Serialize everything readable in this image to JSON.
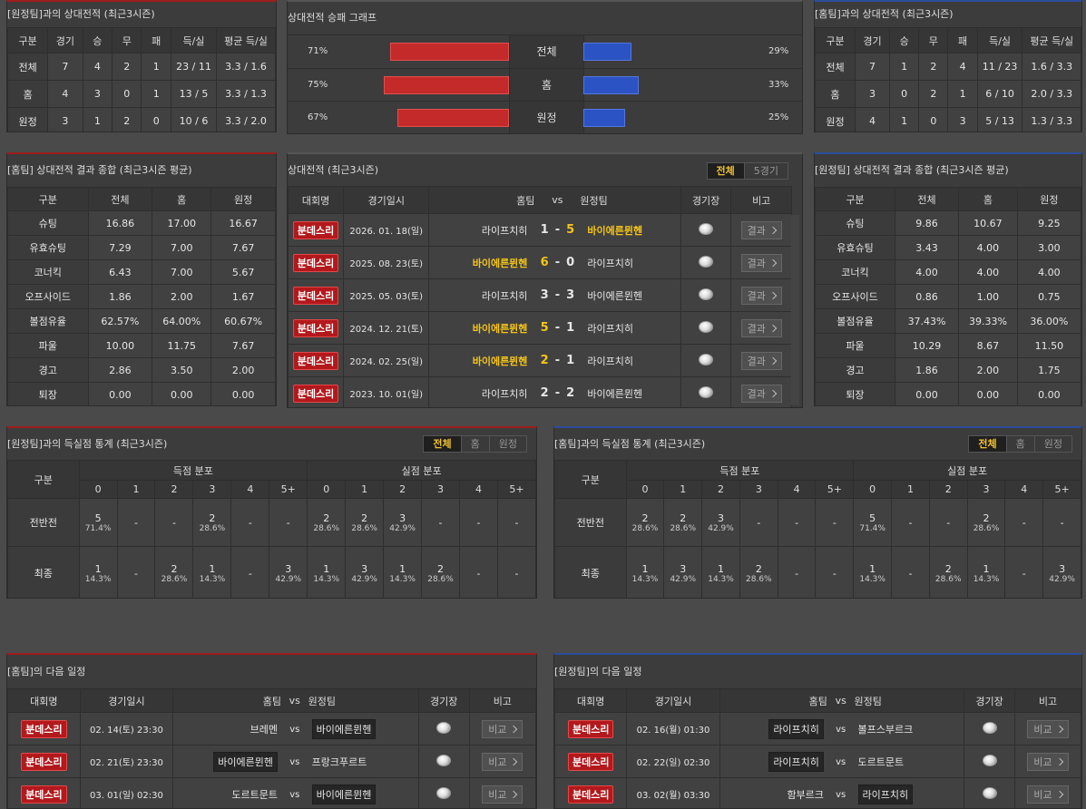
{
  "h2h_away": {
    "title": "[원정팀]과의 상대전적 (최근3시즌)",
    "header": [
      "구분",
      "경기",
      "승",
      "무",
      "패",
      "득/실",
      "평균 득/실"
    ],
    "rows": [
      [
        "전체",
        7,
        4,
        2,
        1,
        "23 / 11",
        "3.3 / 1.6"
      ],
      [
        "홈",
        4,
        3,
        0,
        1,
        "13 / 5",
        "3.3 / 1.3"
      ],
      [
        "원정",
        3,
        1,
        2,
        0,
        "10 / 6",
        "3.3 / 2.0"
      ]
    ]
  },
  "win_graph": {
    "title": "상대전적 승패 그래프",
    "rows": [
      {
        "home_pct": "71%",
        "label": "전체",
        "away_pct": "29%"
      },
      {
        "home_pct": "75%",
        "label": "홈",
        "away_pct": "33%"
      },
      {
        "home_pct": "67%",
        "label": "원정",
        "away_pct": "25%"
      }
    ]
  },
  "h2h_home": {
    "title": "[홈팀]과의 상대전적 (최근3시즌)",
    "header": [
      "구분",
      "경기",
      "승",
      "무",
      "패",
      "득/실",
      "평균 득/실"
    ],
    "rows": [
      [
        "전체",
        7,
        1,
        2,
        4,
        "11 / 23",
        "1.6 / 3.3"
      ],
      [
        "홈",
        3,
        0,
        2,
        1,
        "6 / 10",
        "2.0 / 3.3"
      ],
      [
        "원정",
        4,
        1,
        0,
        3,
        "5 / 13",
        "1.3 / 3.3"
      ]
    ]
  },
  "summary_home": {
    "title": "[홈팀] 상대전적 결과 종합 (최근3시즌 평균)",
    "header": [
      "구분",
      "전체",
      "홈",
      "원정"
    ],
    "rows": [
      [
        "슈팅",
        "16.86",
        "17.00",
        "16.67"
      ],
      [
        "유효슈팅",
        "7.29",
        "7.00",
        "7.67"
      ],
      [
        "코너킥",
        "6.43",
        "7.00",
        "5.67"
      ],
      [
        "오프사이드",
        "1.86",
        "2.00",
        "1.67"
      ],
      [
        "볼점유율",
        "62.57%",
        "64.00%",
        "60.67%"
      ],
      [
        "파울",
        "10.00",
        "11.75",
        "7.67"
      ],
      [
        "경고",
        "2.86",
        "3.50",
        "2.00"
      ],
      [
        "퇴장",
        "0.00",
        "0.00",
        "0.00"
      ]
    ]
  },
  "matches": {
    "title": "상대전적 (최근3시즌)",
    "tabs": [
      "전체",
      "5경기"
    ],
    "header": [
      "대회명",
      "경기일시",
      "홈팀",
      "vs",
      "원정팀",
      "경기장",
      "비고"
    ],
    "rows": [
      {
        "cells": [
          "분데스리",
          "2026. 01. 18(일)",
          "라이프치히",
          "1",
          "-",
          "5",
          "바이에른뮌헨",
          "결과"
        ],
        "winner": "away"
      },
      {
        "cells": [
          "분데스리",
          "2025. 08. 23(토)",
          "바이에른뮌헨",
          "6",
          "-",
          "0",
          "라이프치히",
          "결과"
        ],
        "winner": "home"
      },
      {
        "cells": [
          "분데스리",
          "2025. 05. 03(토)",
          "라이프치히",
          "3",
          "-",
          "3",
          "바이에른뮌헨",
          "결과"
        ],
        "winner": null
      },
      {
        "cells": [
          "분데스리",
          "2024. 12. 21(토)",
          "바이에른뮌헨",
          "5",
          "-",
          "1",
          "라이프치히",
          "결과"
        ],
        "winner": "home"
      },
      {
        "cells": [
          "분데스리",
          "2024. 02. 25(일)",
          "바이에른뮌헨",
          "2",
          "-",
          "1",
          "라이프치히",
          "결과"
        ],
        "winner": "home"
      },
      {
        "cells": [
          "분데스리",
          "2023. 10. 01(일)",
          "라이프치히",
          "2",
          "-",
          "2",
          "바이에른뮌헨",
          "결과"
        ],
        "winner": null
      }
    ]
  },
  "summary_away": {
    "title": "[원정팀] 상대전적 결과 종합 (최근3시즌 평균)",
    "header": [
      "구분",
      "전체",
      "홈",
      "원정"
    ],
    "rows": [
      [
        "슈팅",
        "9.86",
        "10.67",
        "9.25"
      ],
      [
        "유효슈팅",
        "3.43",
        "4.00",
        "3.00"
      ],
      [
        "코너킥",
        "4.00",
        "4.00",
        "4.00"
      ],
      [
        "오프사이드",
        "0.86",
        "1.00",
        "0.75"
      ],
      [
        "볼점유율",
        "37.43%",
        "39.33%",
        "36.00%"
      ],
      [
        "파울",
        "10.29",
        "8.67",
        "11.50"
      ],
      [
        "경고",
        "1.86",
        "2.00",
        "1.75"
      ],
      [
        "퇴장",
        "0.00",
        "0.00",
        "0.00"
      ]
    ]
  },
  "goals_away": {
    "title": "[원정팀]과의 득실점 통계 (최근3시즌)",
    "tabs": [
      "전체",
      "홈",
      "원정"
    ],
    "label": "구분",
    "groups": [
      "득점 분포",
      "실점 분포"
    ],
    "bins": [
      "0",
      "1",
      "2",
      "3",
      "4",
      "5+"
    ],
    "rows": [
      {
        "label": "전반전",
        "cells": [
          [
            "5",
            "71.4%"
          ],
          [
            "-"
          ],
          [
            "-"
          ],
          [
            "2",
            "28.6%"
          ],
          [
            "-"
          ],
          [
            "-"
          ],
          [
            "2",
            "28.6%"
          ],
          [
            "2",
            "28.6%"
          ],
          [
            "3",
            "42.9%"
          ],
          [
            "-"
          ],
          [
            "-"
          ],
          [
            "-"
          ]
        ]
      },
      {
        "label": "최종",
        "cells": [
          [
            "1",
            "14.3%"
          ],
          [
            "-"
          ],
          [
            "2",
            "28.6%"
          ],
          [
            "1",
            "14.3%"
          ],
          [
            "-"
          ],
          [
            "3",
            "42.9%"
          ],
          [
            "1",
            "14.3%"
          ],
          [
            "3",
            "42.9%"
          ],
          [
            "1",
            "14.3%"
          ],
          [
            "2",
            "28.6%"
          ],
          [
            "-"
          ],
          [
            "-"
          ]
        ]
      }
    ]
  },
  "goals_home": {
    "title": "[홈팀]과의 득실점 통계 (최근3시즌)",
    "tabs": [
      "전체",
      "홈",
      "원정"
    ],
    "label": "구분",
    "groups": [
      "득점 분포",
      "실점 분포"
    ],
    "bins": [
      "0",
      "1",
      "2",
      "3",
      "4",
      "5+"
    ],
    "rows": [
      {
        "label": "전반전",
        "cells": [
          [
            "2",
            "28.6%"
          ],
          [
            "2",
            "28.6%"
          ],
          [
            "3",
            "42.9%"
          ],
          [
            "-"
          ],
          [
            "-"
          ],
          [
            "-"
          ],
          [
            "5",
            "71.4%"
          ],
          [
            "-"
          ],
          [
            "-"
          ],
          [
            "2",
            "28.6%"
          ],
          [
            "-"
          ],
          [
            "-"
          ]
        ]
      },
      {
        "label": "최종",
        "cells": [
          [
            "1",
            "14.3%"
          ],
          [
            "3",
            "42.9%"
          ],
          [
            "1",
            "14.3%"
          ],
          [
            "2",
            "28.6%"
          ],
          [
            "-"
          ],
          [
            "-"
          ],
          [
            "1",
            "14.3%"
          ],
          [
            "-"
          ],
          [
            "2",
            "28.6%"
          ],
          [
            "1",
            "14.3%"
          ],
          [
            "-"
          ],
          [
            "3",
            "42.9%"
          ]
        ]
      }
    ]
  },
  "schedule_home": {
    "title": "[홈팀]의 다음 일정",
    "header": [
      "대회명",
      "경기일시",
      "홈팀",
      "vs",
      "원정팀",
      "경기장",
      "비고"
    ],
    "rows": [
      {
        "cells": [
          "분데스리",
          "02. 14(토) 23:30",
          "브레멘",
          "vs",
          "바이에른뮌헨",
          "비교"
        ],
        "boxed": "away"
      },
      {
        "cells": [
          "분데스리",
          "02. 21(토) 23:30",
          "바이에른뮌헨",
          "vs",
          "프랑크푸르트",
          "비교"
        ],
        "boxed": "home"
      },
      {
        "cells": [
          "분데스리",
          "03. 01(일) 02:30",
          "도르트문트",
          "vs",
          "바이에른뮌헨",
          "비교"
        ],
        "boxed": "away"
      }
    ]
  },
  "schedule_away": {
    "title": "[원정팀]의 다음 일정",
    "header": [
      "대회명",
      "경기일시",
      "홈팀",
      "vs",
      "원정팀",
      "경기장",
      "비고"
    ],
    "rows": [
      {
        "cells": [
          "분데스리",
          "02. 16(월) 01:30",
          "라이프치히",
          "vs",
          "볼프스부르크",
          "비교"
        ],
        "boxed": "home"
      },
      {
        "cells": [
          "분데스리",
          "02. 22(일) 02:30",
          "라이프치히",
          "vs",
          "도르트문트",
          "비교"
        ],
        "boxed": "home"
      },
      {
        "cells": [
          "분데스리",
          "03. 02(월) 03:30",
          "함부르크",
          "vs",
          "라이프치히",
          "비교"
        ],
        "boxed": "away"
      }
    ]
  }
}
